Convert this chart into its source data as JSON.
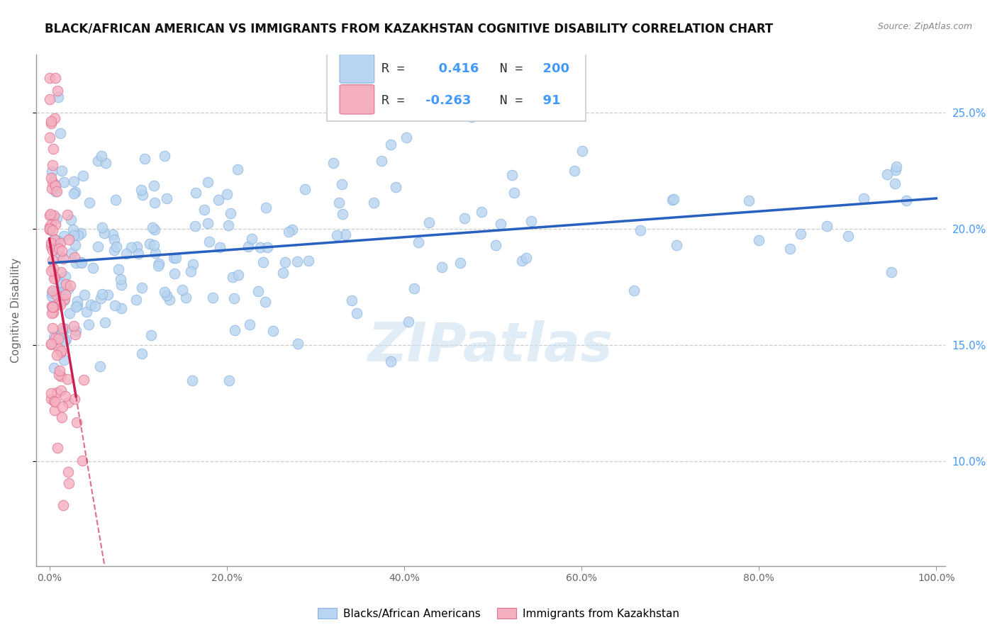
{
  "title": "BLACK/AFRICAN AMERICAN VS IMMIGRANTS FROM KAZAKHSTAN COGNITIVE DISABILITY CORRELATION CHART",
  "source": "Source: ZipAtlas.com",
  "ylabel": "Cognitive Disability",
  "watermark": "ZIPatlas",
  "blue_R": 0.416,
  "blue_N": 200,
  "pink_R": -0.263,
  "pink_N": 91,
  "blue_color": "#b8d4f0",
  "blue_edge": "#88b4e0",
  "pink_color": "#f5b0c0",
  "pink_edge": "#e07090",
  "blue_line_color": "#2860c0",
  "pink_line_color": "#cc2050",
  "yticks": [
    10.0,
    15.0,
    20.0,
    25.0
  ],
  "ytick_labels": [
    "10.0%",
    "15.0%",
    "20.0%",
    "25.0%"
  ],
  "xticks": [
    0,
    20,
    40,
    60,
    80,
    100
  ],
  "xtick_labels": [
    "0.0%",
    "20.0%",
    "40.0%",
    "60.0%",
    "80.0%",
    "100.0%"
  ],
  "background": "#ffffff",
  "grid_color": "#cccccc",
  "title_fontsize": 12,
  "axis_color": "#999999",
  "tick_color": "#666666",
  "right_label_color": "#4499ff",
  "seed": 42
}
